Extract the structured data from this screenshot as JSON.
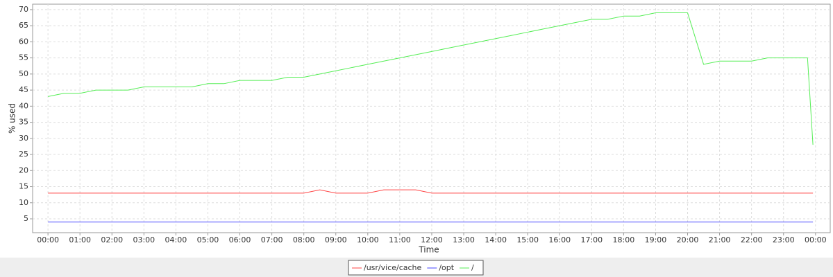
{
  "chart_data": {
    "type": "line",
    "x_label": "Time",
    "y_label": "% used",
    "x": [
      0,
      0.5,
      1,
      1.5,
      2,
      2.5,
      3,
      3.5,
      4,
      4.5,
      5,
      5.5,
      6,
      6.5,
      7,
      7.5,
      8,
      8.5,
      9,
      9.5,
      10,
      10.5,
      11,
      11.5,
      12,
      12.5,
      13,
      13.5,
      14,
      14.5,
      15,
      15.5,
      16,
      16.5,
      17,
      17.5,
      18,
      18.5,
      19,
      19.5,
      20,
      20.5,
      21,
      21.5,
      22,
      22.5,
      23,
      23.5,
      23.75,
      23.92
    ],
    "series": [
      {
        "name": "/usr/vice/cache",
        "color": "#ff4444",
        "values": [
          13,
          13,
          13,
          13,
          13,
          13,
          13,
          13,
          13,
          13,
          13,
          13,
          13,
          13,
          13,
          13,
          13,
          14,
          13,
          13,
          13,
          14,
          14,
          14,
          13,
          13,
          13,
          13,
          13,
          13,
          13,
          13,
          13,
          13,
          13,
          13,
          13,
          13,
          13,
          13,
          13,
          13,
          13,
          13,
          13,
          13,
          13,
          13,
          13,
          13
        ]
      },
      {
        "name": "/opt",
        "color": "#4444ff",
        "values": [
          4,
          4,
          4,
          4,
          4,
          4,
          4,
          4,
          4,
          4,
          4,
          4,
          4,
          4,
          4,
          4,
          4,
          4,
          4,
          4,
          4,
          4,
          4,
          4,
          4,
          4,
          4,
          4,
          4,
          4,
          4,
          4,
          4,
          4,
          4,
          4,
          4,
          4,
          4,
          4,
          4,
          4,
          4,
          4,
          4,
          4,
          4,
          4,
          4,
          4
        ]
      },
      {
        "name": "/",
        "color": "#55ee55",
        "values": [
          43,
          44,
          44,
          45,
          45,
          45,
          46,
          46,
          46,
          46,
          47,
          47,
          48,
          48,
          48,
          49,
          49,
          50,
          51,
          52,
          53,
          54,
          55,
          56,
          57,
          58,
          59,
          60,
          61,
          62,
          63,
          64,
          65,
          66,
          67,
          67,
          68,
          68,
          69,
          69,
          69,
          53,
          54,
          54,
          54,
          55,
          55,
          55,
          55,
          28
        ]
      }
    ],
    "xlim": [
      -0.48,
      24.46
    ],
    "ylim": [
      0.7,
      71.7
    ],
    "yticks": [
      5,
      10,
      15,
      20,
      25,
      30,
      35,
      40,
      45,
      50,
      55,
      60,
      65,
      70
    ],
    "xticks": [
      {
        "value": 0,
        "label": "00:00"
      },
      {
        "value": 1,
        "label": "01:00"
      },
      {
        "value": 2,
        "label": "02:00"
      },
      {
        "value": 3,
        "label": "03:00"
      },
      {
        "value": 4,
        "label": "04:00"
      },
      {
        "value": 5,
        "label": "05:00"
      },
      {
        "value": 6,
        "label": "06:00"
      },
      {
        "value": 7,
        "label": "07:00"
      },
      {
        "value": 8,
        "label": "08:00"
      },
      {
        "value": 9,
        "label": "09:00"
      },
      {
        "value": 10,
        "label": "10:00"
      },
      {
        "value": 11,
        "label": "11:00"
      },
      {
        "value": 12,
        "label": "12:00"
      },
      {
        "value": 13,
        "label": "13:00"
      },
      {
        "value": 14,
        "label": "14:00"
      },
      {
        "value": 15,
        "label": "15:00"
      },
      {
        "value": 16,
        "label": "16:00"
      },
      {
        "value": 17,
        "label": "17:00"
      },
      {
        "value": 18,
        "label": "18:00"
      },
      {
        "value": 19,
        "label": "19:00"
      },
      {
        "value": 20,
        "label": "20:00"
      },
      {
        "value": 21,
        "label": "21:00"
      },
      {
        "value": 22,
        "label": "22:00"
      },
      {
        "value": 23,
        "label": "23:00"
      },
      {
        "value": 24,
        "label": "00:00"
      }
    ],
    "grid": true
  }
}
